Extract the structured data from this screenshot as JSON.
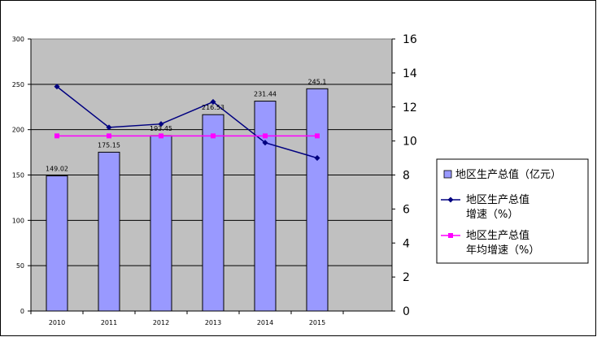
{
  "chart_data": {
    "type": "bar",
    "categories": [
      "2010",
      "2011",
      "2012",
      "2013",
      "2014",
      "2015"
    ],
    "y_left": {
      "range": [
        0,
        300
      ],
      "ticks": [
        0,
        50,
        100,
        150,
        200,
        250,
        300
      ]
    },
    "y_right": {
      "range": [
        0,
        16
      ],
      "ticks": [
        0,
        2,
        4,
        6,
        8,
        10,
        12,
        14,
        16
      ]
    },
    "grid": true,
    "legend_position": "right",
    "series": [
      {
        "name": "地区生产总值（亿元）",
        "type": "bar",
        "axis": "left",
        "values": [
          149.02,
          175.15,
          193.45,
          216.53,
          231.44,
          245.1
        ],
        "labels": [
          "149.02",
          "175.15",
          "193.45",
          "216.53",
          "231.44",
          "245.1"
        ],
        "color": "#9999ff"
      },
      {
        "name_lines": [
          "地区生产总值",
          "增速（%）"
        ],
        "type": "line",
        "axis": "right",
        "values": [
          13.2,
          10.8,
          11.0,
          12.3,
          9.9,
          9.0
        ],
        "color": "#000080"
      },
      {
        "name_lines": [
          "地区生产总值",
          "年均增速（%）"
        ],
        "type": "line",
        "axis": "right",
        "values": [
          10.3,
          10.3,
          10.3,
          10.3,
          10.3,
          10.3
        ],
        "color": "#ff00ff"
      }
    ]
  }
}
